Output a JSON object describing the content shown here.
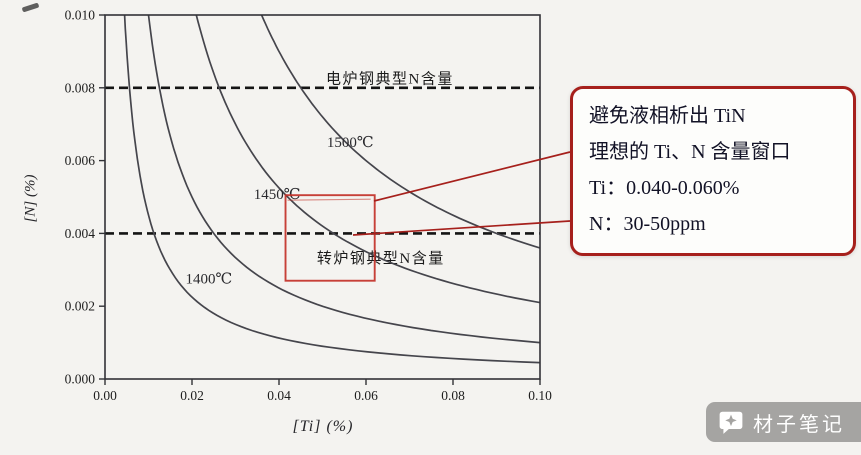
{
  "chart_data": {
    "type": "line",
    "title": "",
    "xlabel": "[Ti] (%)",
    "ylabel": "[N] (%)",
    "x_range": [
      0,
      0.1
    ],
    "y_range": [
      0,
      0.01
    ],
    "grid": false,
    "x_ticks": {
      "values": [
        0,
        0.02,
        0.04,
        0.06,
        0.08,
        0.1
      ],
      "labels": [
        "0.00",
        "0.02",
        "0.04",
        "0.06",
        "0.08",
        "0.10"
      ]
    },
    "y_ticks": {
      "values": [
        0,
        0.002,
        0.004,
        0.006,
        0.008,
        0.01
      ],
      "labels": [
        "0.000",
        "0.002",
        "0.004",
        "0.006",
        "0.008",
        "0.010"
      ]
    },
    "series": [
      {
        "name": "isotherm-unlabeled",
        "label": "",
        "solubility_product": 4.5e-05,
        "points": [
          [
            0.0045,
            0.01
          ],
          [
            0.006,
            0.0075
          ],
          [
            0.008,
            0.0056
          ],
          [
            0.01,
            0.0045
          ],
          [
            0.015,
            0.003
          ],
          [
            0.02,
            0.00225
          ],
          [
            0.03,
            0.0015
          ],
          [
            0.045,
            0.001
          ],
          [
            0.06,
            0.00075
          ],
          [
            0.08,
            0.00056
          ],
          [
            0.1,
            0.00045
          ]
        ]
      },
      {
        "name": "isotherm-1400C",
        "label": "1400℃",
        "label_pos": [
          0.0185,
          0.00263
        ],
        "solubility_product": 0.0001,
        "points": [
          [
            0.01,
            0.01
          ],
          [
            0.0125,
            0.008
          ],
          [
            0.0167,
            0.006
          ],
          [
            0.02,
            0.005
          ],
          [
            0.025,
            0.004
          ],
          [
            0.0333,
            0.003
          ],
          [
            0.04,
            0.0025
          ],
          [
            0.05,
            0.002
          ],
          [
            0.0667,
            0.0015
          ],
          [
            0.08,
            0.00125
          ],
          [
            0.1,
            0.001
          ]
        ]
      },
      {
        "name": "isotherm-1450C",
        "label": "1450℃",
        "label_pos": [
          0.0342,
          0.00495
        ],
        "solubility_product": 0.00021,
        "points": [
          [
            0.021,
            0.01
          ],
          [
            0.0263,
            0.008
          ],
          [
            0.03,
            0.007
          ],
          [
            0.035,
            0.006
          ],
          [
            0.042,
            0.005
          ],
          [
            0.0525,
            0.004
          ],
          [
            0.06,
            0.0035
          ],
          [
            0.07,
            0.003
          ],
          [
            0.084,
            0.0025
          ],
          [
            0.1,
            0.0021
          ]
        ]
      },
      {
        "name": "isotherm-1500C",
        "label": "1500℃",
        "label_pos": [
          0.051,
          0.00638
        ],
        "solubility_product": 0.00036,
        "points": [
          [
            0.036,
            0.01
          ],
          [
            0.04,
            0.009
          ],
          [
            0.045,
            0.008
          ],
          [
            0.0514,
            0.007
          ],
          [
            0.06,
            0.006
          ],
          [
            0.072,
            0.005
          ],
          [
            0.08,
            0.0045
          ],
          [
            0.09,
            0.004
          ],
          [
            0.1,
            0.0036
          ]
        ]
      }
    ],
    "reference_lines": [
      {
        "y": 0.008,
        "label": "电炉钢典型N含量",
        "label_pos": [
          0.0655,
          0.00812
        ]
      },
      {
        "y": 0.004,
        "label": "转炉钢典型N含量",
        "label_pos": [
          0.0634,
          0.00318
        ]
      }
    ],
    "highlight_window": {
      "ti_min": 0.0415,
      "ti_max": 0.062,
      "n_min": 0.0027,
      "n_max": 0.00505,
      "color": "#c23128"
    }
  },
  "callout": {
    "lines": [
      "避免液相析出 TiN",
      "理想的 Ti、N 含量窗口",
      "Ti：0.040-0.060%",
      "N：30-50ppm"
    ],
    "border_color": "#a6201c"
  },
  "watermark": {
    "text": "材子笔记"
  }
}
